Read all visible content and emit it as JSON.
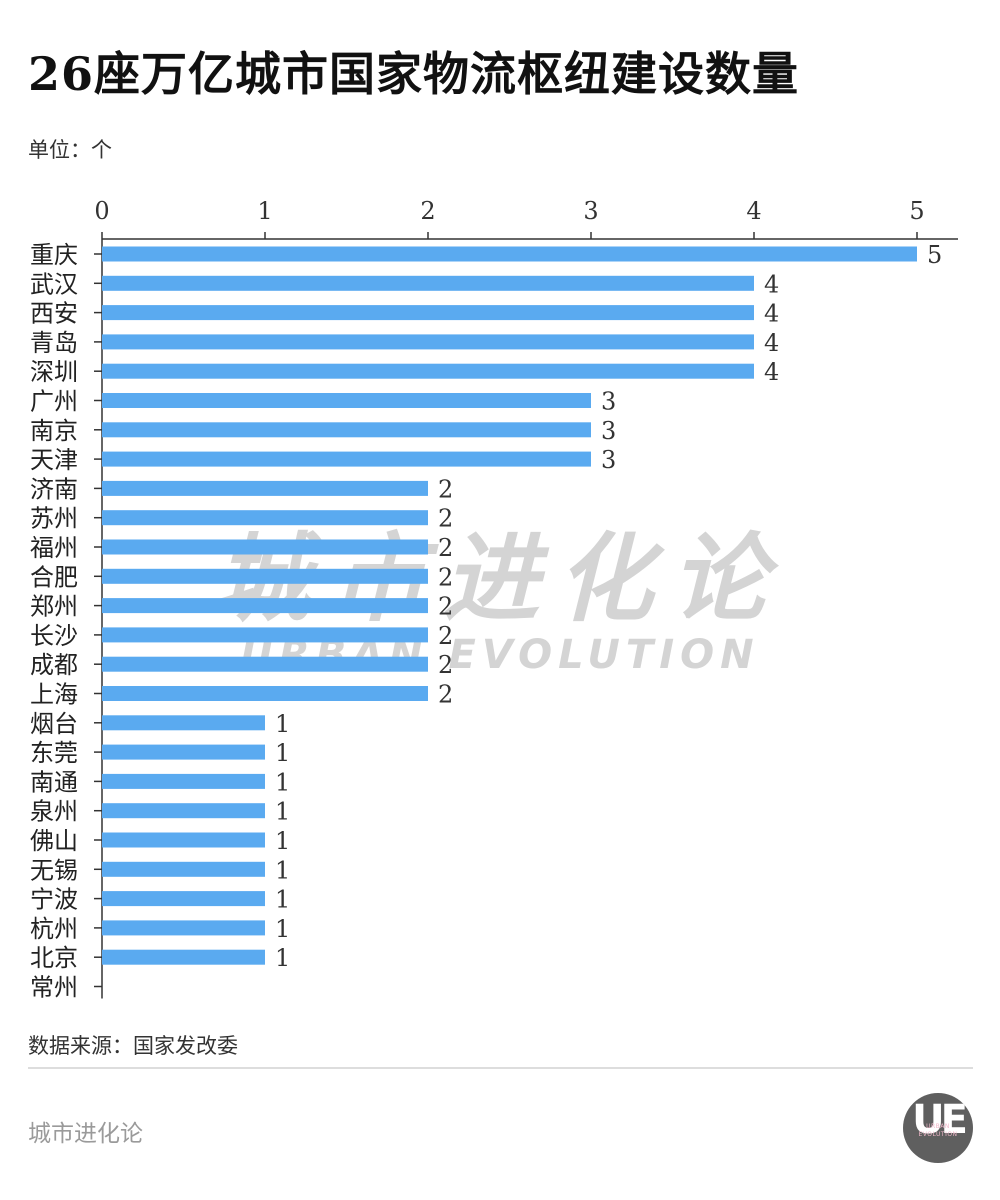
{
  "header": {
    "title": "26座万亿城市国家物流枢纽建设数量",
    "unit": "单位：个"
  },
  "footer": {
    "source": "数据来源：国家发改委",
    "brand": "城市进化论",
    "logo_letters": "UE",
    "logo_sub_1": "URBAN",
    "logo_sub_2": "EVOLUTION"
  },
  "watermark": {
    "cn": "城市进化论",
    "en": "URBAN EVOLUTION"
  },
  "colors": {
    "bar": "#5aaaf0",
    "axis": "#333333",
    "text": "#222222",
    "watermark": "#d4d4d4"
  },
  "chart_data": {
    "type": "bar",
    "orientation": "horizontal",
    "categories": [
      "重庆",
      "武汉",
      "西安",
      "青岛",
      "深圳",
      "广州",
      "南京",
      "天津",
      "济南",
      "苏州",
      "福州",
      "合肥",
      "郑州",
      "长沙",
      "成都",
      "上海",
      "烟台",
      "东莞",
      "南通",
      "泉州",
      "佛山",
      "无锡",
      "宁波",
      "杭州",
      "北京",
      "常州"
    ],
    "values": [
      5,
      4,
      4,
      4,
      4,
      3,
      3,
      3,
      2,
      2,
      2,
      2,
      2,
      2,
      2,
      2,
      1,
      1,
      1,
      1,
      1,
      1,
      1,
      1,
      1,
      0
    ],
    "data_labels": [
      "5",
      "4",
      "4",
      "4",
      "4",
      "3",
      "3",
      "3",
      "2",
      "2",
      "2",
      "2",
      "2",
      "2",
      "2",
      "2",
      "1",
      "1",
      "1",
      "1",
      "1",
      "1",
      "1",
      "1",
      "1",
      ""
    ],
    "xlim": [
      0,
      5
    ],
    "xticks": [
      "0",
      "1",
      "2",
      "3",
      "4",
      "5"
    ],
    "x_axis_position": "top",
    "grid": false,
    "legend": false
  }
}
